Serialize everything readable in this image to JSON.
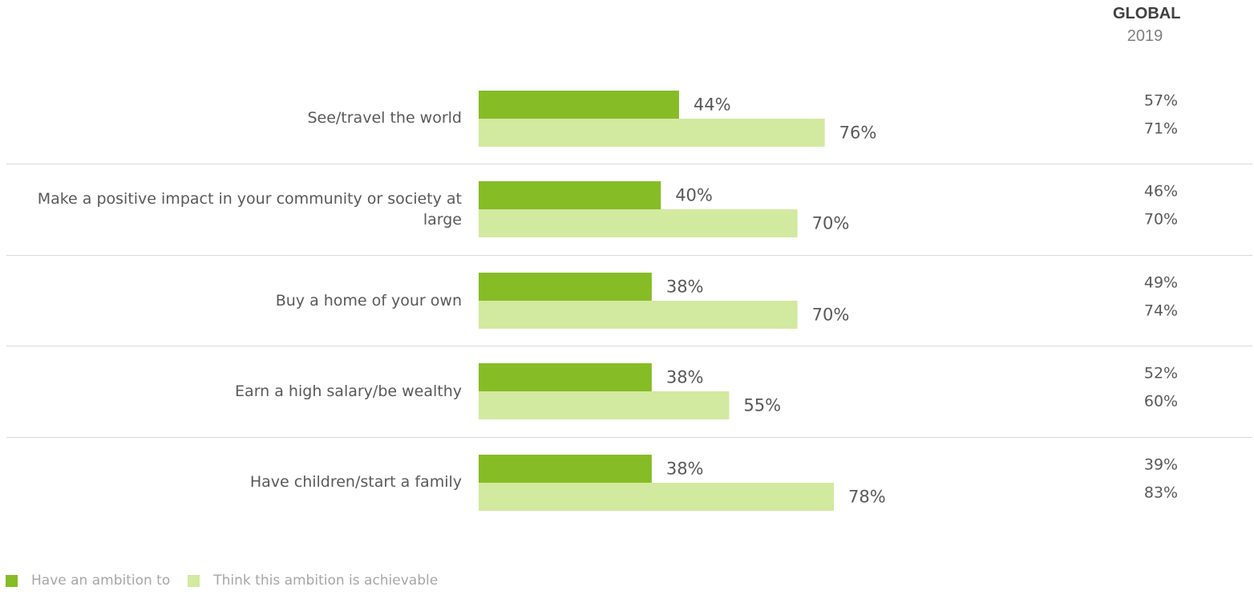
{
  "header": {
    "region": "GLOBAL",
    "year": "2019"
  },
  "colors": {
    "ambition": "#86bc25",
    "achievable": "#d2e9a0"
  },
  "legend": [
    {
      "label": "Have an ambition to",
      "color": "#86bc25"
    },
    {
      "label": "Think this ambition is achievable",
      "color": "#d2e9a0"
    }
  ],
  "chart_data": {
    "type": "bar",
    "orientation": "horizontal",
    "categories": [
      "See/travel the world",
      "Make a positive impact in your community or society at large",
      "Buy a home of your own",
      "Earn a high salary/be wealthy",
      "Have children/start a family"
    ],
    "series": [
      {
        "name": "Have an ambition to",
        "values": [
          44,
          40,
          38,
          38,
          38
        ]
      },
      {
        "name": "Think this ambition is achievable",
        "values": [
          76,
          70,
          70,
          55,
          78
        ]
      }
    ],
    "value_labels": {
      "ambition": [
        "44%",
        "40%",
        "38%",
        "38%",
        "38%"
      ],
      "achievable": [
        "76%",
        "70%",
        "70%",
        "55%",
        "78%"
      ]
    },
    "global_2019": {
      "ambition": [
        "57%",
        "46%",
        "49%",
        "52%",
        "39%"
      ],
      "achievable": [
        "71%",
        "70%",
        "74%",
        "60%",
        "83%"
      ]
    },
    "xlim": [
      0,
      100
    ],
    "grid": false,
    "legend_position": "bottom-left"
  }
}
